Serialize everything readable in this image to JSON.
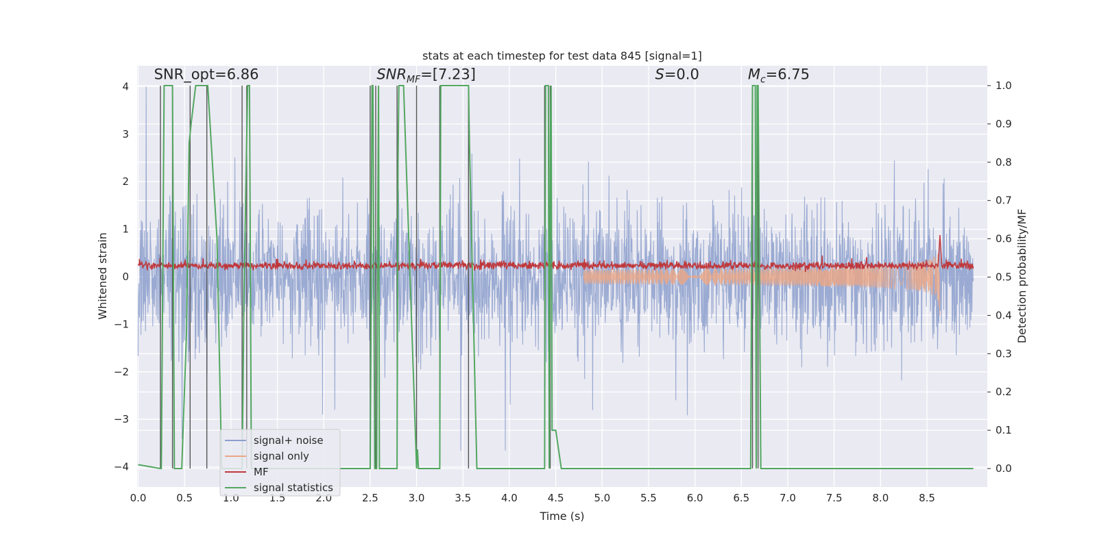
{
  "chart_data": {
    "type": "line",
    "title": "stats at each timestep for test data 845 [signal=1]",
    "xlabel": "Time (s)",
    "ylabel_left": "Whitened strain",
    "ylabel_right": "Detection probability/MF",
    "xlim": [
      0.0,
      9.0
    ],
    "ylim_left": [
      -4.3,
      4.4
    ],
    "ylim_right": [
      -0.047,
      1.047
    ],
    "grid": true,
    "x_ticks": [
      "0.0",
      "0.5",
      "1.0",
      "1.5",
      "2.0",
      "2.5",
      "3.0",
      "3.5",
      "4.0",
      "4.5",
      "5.0",
      "5.5",
      "6.0",
      "6.5",
      "7.0",
      "7.5",
      "8.0",
      "8.5"
    ],
    "x_tick_values": [
      0.0,
      0.5,
      1.0,
      1.5,
      2.0,
      2.5,
      3.0,
      3.5,
      4.0,
      4.5,
      5.0,
      5.5,
      6.0,
      6.5,
      7.0,
      7.5,
      8.0,
      8.5
    ],
    "y_left_ticks": [
      "−4",
      "−3",
      "−2",
      "−1",
      "0",
      "1",
      "2",
      "3",
      "4"
    ],
    "y_left_tick_values": [
      -4,
      -3,
      -2,
      -1,
      0,
      1,
      2,
      3,
      4
    ],
    "y_right_ticks": [
      "0.0",
      "0.1",
      "0.2",
      "0.3",
      "0.4",
      "0.5",
      "0.6",
      "0.7",
      "0.8",
      "0.9",
      "1.0"
    ],
    "y_right_tick_values": [
      0.0,
      0.1,
      0.2,
      0.3,
      0.4,
      0.5,
      0.6,
      0.7,
      0.8,
      0.9,
      1.0
    ],
    "annotations": [
      {
        "text": "SNR_opt=6.86",
        "x": 0.2,
        "y": 4.2,
        "italic": false
      },
      {
        "text": "SNR_MF=[7.23]",
        "x": 2.6,
        "y": 4.2,
        "italic": true
      },
      {
        "text": "S=0.0",
        "x": 5.6,
        "y": 4.2,
        "italic": true
      },
      {
        "text": "M_c=6.75",
        "x": 6.6,
        "y": 4.2,
        "italic": true
      }
    ],
    "legend": {
      "position": "lower-left",
      "entries": [
        {
          "label": "signal+ noise",
          "color": "#8c9fcc"
        },
        {
          "label": "signal only",
          "color": "#eba684"
        },
        {
          "label": "MF",
          "color": "#c0383b"
        },
        {
          "label": "signal statistics",
          "color": "#52a760"
        }
      ]
    },
    "series": [
      {
        "name": "signal+ noise",
        "axis": "left",
        "color": "#8c9fcc",
        "style": "dense noise band, approx. ±1.6 core with spikes up to ±4"
      },
      {
        "name": "signal only",
        "axis": "left",
        "color": "#eba684",
        "chirp_start": 4.8,
        "merger_time": 8.64,
        "peak_amplitude": 0.9
      },
      {
        "name": "MF",
        "axis": "right",
        "color": "#c0383b",
        "baseline": 0.53,
        "peak": {
          "x": 8.64,
          "y": 0.61
        }
      },
      {
        "name": "signal statistics",
        "axis": "right",
        "color": "#52a760",
        "x": [
          0.0,
          0.24,
          0.25,
          0.28,
          0.37,
          0.39,
          0.47,
          0.52,
          0.55,
          0.57,
          0.62,
          0.64,
          0.72,
          0.75,
          0.85,
          0.9,
          1.12,
          1.13,
          1.14,
          1.18,
          1.2,
          1.22,
          2.5,
          2.51,
          2.52,
          2.53,
          2.55,
          2.57,
          2.58,
          2.59,
          2.6,
          2.79,
          2.8,
          2.81,
          2.82,
          2.84,
          2.86,
          3.0,
          3.01,
          3.02,
          3.08,
          3.12,
          3.25,
          3.26,
          3.27,
          3.3,
          3.56,
          3.57,
          3.65,
          3.7,
          4.38,
          4.39,
          4.42,
          4.43,
          4.44,
          4.45,
          4.46,
          4.5,
          4.56,
          6.6,
          6.61,
          6.62,
          6.65,
          6.66,
          6.67,
          6.68,
          6.71,
          6.72,
          9.0
        ],
        "y": [
          0.01,
          0.0,
          0.0,
          1.0,
          1.0,
          0.0,
          0.0,
          0.35,
          0.85,
          0.9,
          1.0,
          1.0,
          1.0,
          1.0,
          0.6,
          0.0,
          0.0,
          0.2,
          0.45,
          1.0,
          1.0,
          0.0,
          0.0,
          0.4,
          1.0,
          1.0,
          0.0,
          0.0,
          0.55,
          1.0,
          0.0,
          0.0,
          0.8,
          1.0,
          1.0,
          1.0,
          1.0,
          0.0,
          0.05,
          0.0,
          0.0,
          0.0,
          0.0,
          1.0,
          1.0,
          1.0,
          1.0,
          0.85,
          0.0,
          0.0,
          0.0,
          1.0,
          1.0,
          0.0,
          0.85,
          1.0,
          0.1,
          0.1,
          0.0,
          0.0,
          0.5,
          1.0,
          1.0,
          0.0,
          1.0,
          1.0,
          0.0,
          0.0,
          0.0
        ]
      },
      {
        "name": "threshold markers",
        "axis": "right",
        "color": "#555555",
        "x": [
          0.24,
          0.37,
          0.56,
          0.74,
          1.12,
          1.17,
          2.5,
          2.56,
          2.79,
          3.0,
          3.25,
          3.56,
          4.38,
          4.44,
          6.62,
          6.68
        ]
      }
    ]
  }
}
